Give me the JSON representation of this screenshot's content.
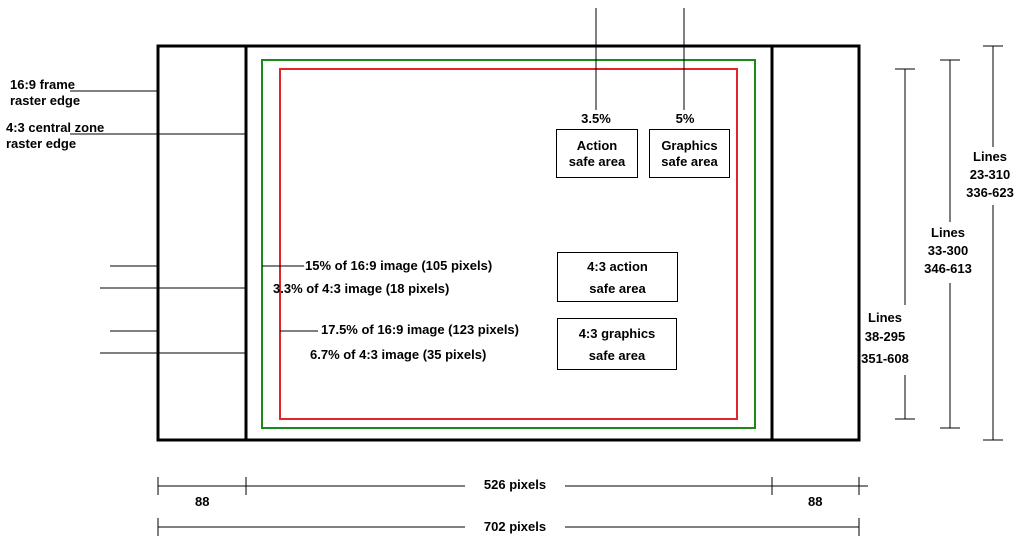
{
  "labels": {
    "frame_16_9_edge": [
      "16:9  frame",
      "raster edge"
    ],
    "central_4_3_edge": [
      "4:3 central zone",
      "raster edge"
    ]
  },
  "safe_areas": {
    "action_pct": "3.5%",
    "graphics_pct": "5%",
    "action_box": [
      "Action",
      "safe area"
    ],
    "graphics_box": [
      "Graphics",
      "safe area"
    ],
    "box_4_3_action": [
      "4:3 action",
      "safe area"
    ],
    "box_4_3_graphics": [
      "4:3 graphics",
      "safe area"
    ]
  },
  "margins": {
    "m1": "15% of 16:9 image (105 pixels)",
    "m2": "3.3% of 4:3 image (18 pixels)",
    "m3": "17.5% of 16:9 image (123 pixels)",
    "m4": "6.7% of 4:3 image (35 pixels)"
  },
  "lines": {
    "outer": [
      "Lines",
      "23-310",
      "336-623"
    ],
    "middle": [
      "Lines",
      "33-300",
      "346-613"
    ],
    "inner": [
      "Lines",
      "38-295",
      "351-608"
    ]
  },
  "dimensions": {
    "side_left": "88",
    "center": "526 pixels",
    "side_right": "88",
    "total": "702 pixels"
  },
  "colors": {
    "frame": "#000000",
    "action_safe": "#1a8a1a",
    "graphics_safe": "#e0262a"
  }
}
